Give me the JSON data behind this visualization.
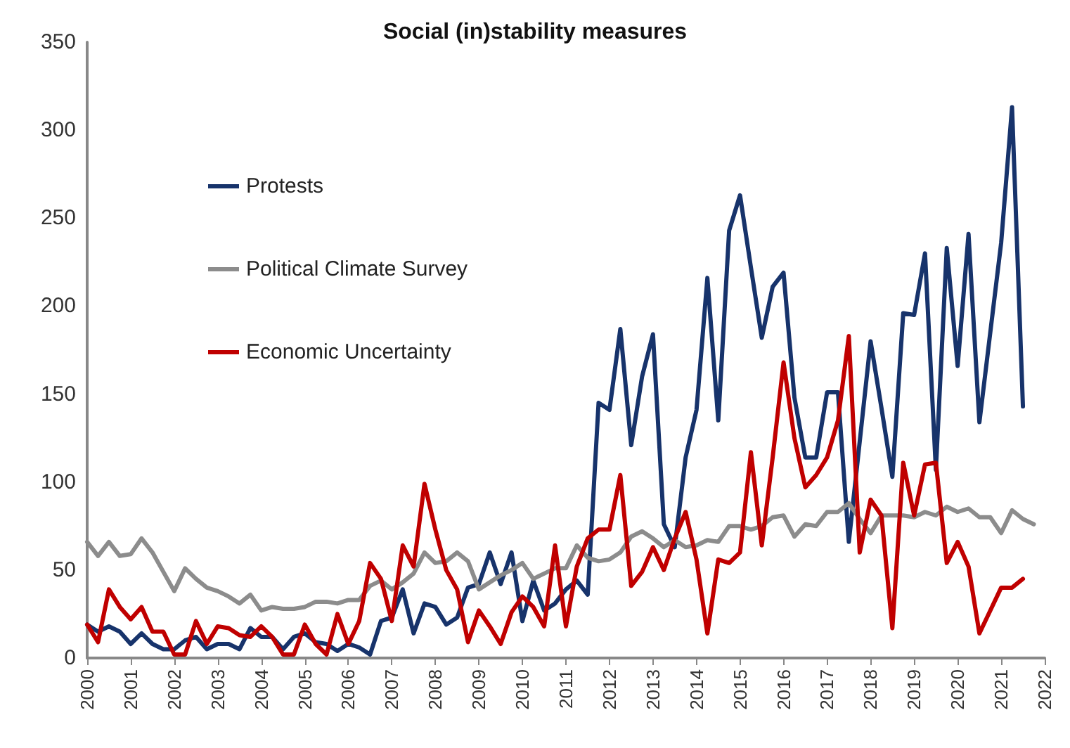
{
  "chart_data": {
    "type": "line",
    "title": "Social (in)stability measures",
    "x": [
      2000,
      2000.25,
      2000.5,
      2000.75,
      2001,
      2001.25,
      2001.5,
      2001.75,
      2002,
      2002.25,
      2002.5,
      2002.75,
      2003,
      2003.25,
      2003.5,
      2003.75,
      2004,
      2004.25,
      2004.5,
      2004.75,
      2005,
      2005.25,
      2005.5,
      2005.75,
      2006,
      2006.25,
      2006.5,
      2006.75,
      2007,
      2007.25,
      2007.5,
      2007.75,
      2008,
      2008.25,
      2008.5,
      2008.75,
      2009,
      2009.25,
      2009.5,
      2009.75,
      2010,
      2010.25,
      2010.5,
      2010.75,
      2011,
      2011.25,
      2011.5,
      2011.75,
      2012,
      2012.25,
      2012.5,
      2012.75,
      2013,
      2013.25,
      2013.5,
      2013.75,
      2014,
      2014.25,
      2014.5,
      2014.75,
      2015,
      2015.25,
      2015.5,
      2015.75,
      2016,
      2016.25,
      2016.5,
      2016.75,
      2017,
      2017.25,
      2017.5,
      2017.75,
      2018,
      2018.25,
      2018.5,
      2018.75,
      2019,
      2019.25,
      2019.5,
      2019.75,
      2020,
      2020.25,
      2020.5,
      2020.75,
      2021,
      2021.25,
      2021.5,
      2021.75
    ],
    "series": [
      {
        "name": "Protests",
        "color": "#17336b",
        "values": [
          19,
          15,
          18,
          15,
          8,
          14,
          8,
          5,
          5,
          10,
          12,
          5,
          8,
          8,
          5,
          17,
          12,
          12,
          5,
          12,
          14,
          9,
          8,
          4,
          8,
          6,
          2,
          21,
          23,
          39,
          14,
          31,
          29,
          19,
          23,
          40,
          42,
          60,
          42,
          60,
          21,
          44,
          27,
          31,
          39,
          44,
          36,
          145,
          141,
          187,
          121,
          160,
          184,
          76,
          63,
          114,
          141,
          216,
          135,
          243,
          263,
          222,
          182,
          211,
          219,
          148,
          114,
          114,
          151,
          151,
          66,
          123,
          180,
          142,
          103,
          196,
          195,
          230,
          107,
          233,
          166,
          241,
          134,
          185,
          236,
          313,
          143,
          null
        ]
      },
      {
        "name": "Political Climate Survey",
        "color": "#8c8c8c",
        "values": [
          66,
          58,
          66,
          58,
          59,
          68,
          60,
          49,
          38,
          51,
          45,
          40,
          38,
          35,
          31,
          36,
          27,
          29,
          28,
          28,
          29,
          32,
          32,
          31,
          33,
          33,
          41,
          44,
          39,
          43,
          48,
          60,
          54,
          55,
          60,
          55,
          39,
          43,
          47,
          50,
          54,
          45,
          48,
          51,
          51,
          64,
          57,
          55,
          56,
          60,
          69,
          72,
          68,
          63,
          67,
          63,
          64,
          67,
          66,
          75,
          75,
          73,
          75,
          80,
          81,
          69,
          76,
          75,
          83,
          83,
          88,
          79,
          71,
          81,
          81,
          81,
          80,
          83,
          81,
          86,
          83,
          85,
          80,
          80,
          71,
          84,
          79,
          76
        ]
      },
      {
        "name": "Economic Uncertainty",
        "color": "#c00000",
        "values": [
          19,
          9,
          39,
          29,
          22,
          29,
          15,
          15,
          2,
          2,
          21,
          8,
          18,
          17,
          13,
          12,
          18,
          12,
          2,
          2,
          19,
          8,
          2,
          25,
          8,
          21,
          54,
          45,
          21,
          64,
          52,
          99,
          73,
          50,
          39,
          9,
          27,
          18,
          8,
          26,
          35,
          29,
          18,
          64,
          18,
          52,
          68,
          73,
          73,
          104,
          41,
          49,
          63,
          50,
          68,
          83,
          56,
          14,
          56,
          54,
          60,
          117,
          64,
          114,
          168,
          125,
          97,
          104,
          114,
          135,
          183,
          60,
          90,
          81,
          17,
          111,
          81,
          110,
          111,
          54,
          66,
          52,
          14,
          27,
          40,
          40,
          45,
          null
        ]
      }
    ],
    "xlim": [
      2000,
      2022
    ],
    "xticks": [
      2000,
      2001,
      2002,
      2003,
      2004,
      2005,
      2006,
      2007,
      2008,
      2009,
      2010,
      2011,
      2012,
      2013,
      2014,
      2015,
      2016,
      2017,
      2018,
      2019,
      2020,
      2021,
      2022
    ],
    "ylim": [
      0,
      350
    ],
    "yticks": [
      0,
      50,
      100,
      150,
      200,
      250,
      300,
      350
    ],
    "grid": false,
    "legend": "top left",
    "marker": "none",
    "line_style": "solid"
  }
}
